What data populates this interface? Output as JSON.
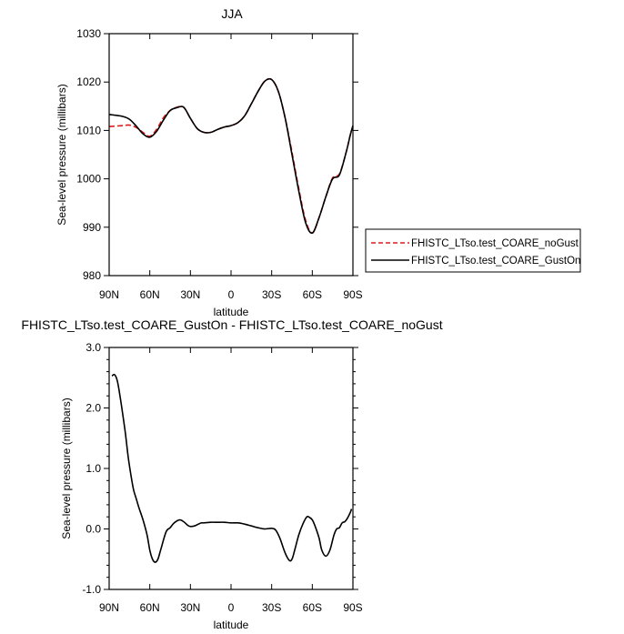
{
  "chart_data": [
    {
      "type": "line",
      "title": "JJA",
      "xlabel": "latitude",
      "ylabel": "Sea-level pressure (millibars)",
      "x_ticks": [
        {
          "value": 90,
          "label": "90N"
        },
        {
          "value": 60,
          "label": "60N"
        },
        {
          "value": 30,
          "label": "30N"
        },
        {
          "value": 0,
          "label": "0"
        },
        {
          "value": -30,
          "label": "30S"
        },
        {
          "value": -60,
          "label": "60S"
        },
        {
          "value": -90,
          "label": "90S"
        }
      ],
      "xlim": [
        90,
        -90
      ],
      "ylim": [
        980,
        1030
      ],
      "y_ticks": [
        980,
        990,
        1000,
        1010,
        1020,
        1030
      ],
      "y_tick_labels": [
        "980",
        "990",
        "1000",
        "1010",
        "1020",
        "1030"
      ],
      "legend_position": "right",
      "series": [
        {
          "name": "FHISTC_LTso.test_COARE_noGust",
          "color": "#e31a1c",
          "dash": "dashed",
          "x": [
            90,
            80,
            75,
            70,
            65,
            60,
            55,
            50,
            45,
            40,
            35,
            30,
            25,
            20,
            15,
            10,
            5,
            0,
            -5,
            -10,
            -15,
            -20,
            -25,
            -30,
            -35,
            -40,
            -45,
            -50,
            -55,
            -60,
            -65,
            -70,
            -75,
            -80,
            -85,
            -88,
            -90
          ],
          "y": [
            1010.8,
            1011.0,
            1011.1,
            1010.6,
            1009.6,
            1008.8,
            1010.2,
            1012.6,
            1014.1,
            1014.8,
            1014.8,
            1012.5,
            1010.4,
            1009.6,
            1009.6,
            1010.2,
            1010.7,
            1011.0,
            1011.6,
            1013.0,
            1015.5,
            1018.1,
            1020.2,
            1020.5,
            1018.0,
            1012.5,
            1005.5,
            998.0,
            991.5,
            988.8,
            992.0,
            996.3,
            1000.2,
            1001.0,
            1005.5,
            1009.0,
            1010.8
          ]
        },
        {
          "name": "FHISTC_LTso.test_COARE_GustOn",
          "color": "#000000",
          "dash": "solid",
          "x": [
            90,
            80,
            75,
            70,
            65,
            60,
            55,
            50,
            45,
            40,
            35,
            30,
            25,
            20,
            15,
            10,
            5,
            0,
            -5,
            -10,
            -15,
            -20,
            -25,
            -30,
            -35,
            -40,
            -45,
            -50,
            -55,
            -60,
            -65,
            -70,
            -75,
            -80,
            -85,
            -88,
            -90
          ],
          "y": [
            1013.3,
            1012.9,
            1012.3,
            1010.9,
            1009.3,
            1008.6,
            1009.8,
            1012.1,
            1014.1,
            1014.7,
            1014.8,
            1012.5,
            1010.4,
            1009.6,
            1009.6,
            1010.2,
            1010.7,
            1011.0,
            1011.6,
            1013.0,
            1015.5,
            1018.1,
            1020.2,
            1020.5,
            1018.0,
            1012.5,
            1005.0,
            997.5,
            991.0,
            988.8,
            992.0,
            996.3,
            1000.0,
            1000.8,
            1005.5,
            1009.0,
            1011.0
          ]
        }
      ]
    },
    {
      "type": "line",
      "title": "FHISTC_LTso.test_COARE_GustOn - FHISTC_LTso.test_COARE_noGust",
      "xlabel": "latitude",
      "ylabel": "Sea-level pressure (millibars)",
      "x_ticks": [
        {
          "value": 90,
          "label": "90N"
        },
        {
          "value": 60,
          "label": "60N"
        },
        {
          "value": 30,
          "label": "30N"
        },
        {
          "value": 0,
          "label": "0"
        },
        {
          "value": -30,
          "label": "30S"
        },
        {
          "value": -60,
          "label": "60S"
        },
        {
          "value": -90,
          "label": "90S"
        }
      ],
      "xlim": [
        90,
        -90
      ],
      "ylim": [
        -1.0,
        3.0
      ],
      "y_ticks": [
        -1.0,
        0.0,
        1.0,
        2.0,
        3.0
      ],
      "y_tick_labels": [
        "-1.0",
        "0.0",
        "1.0",
        "2.0",
        "3.0"
      ],
      "series": [
        {
          "color": "#000000",
          "dash": "solid",
          "x": [
            88,
            86,
            84,
            82,
            80,
            78,
            76,
            74,
            72,
            70,
            68,
            65,
            62,
            60,
            58,
            56,
            54,
            52,
            48,
            45,
            42,
            38,
            35,
            32,
            30,
            27,
            25,
            22,
            20,
            15,
            10,
            5,
            0,
            -5,
            -10,
            -15,
            -20,
            -25,
            -30,
            -33,
            -36,
            -40,
            -43,
            -45,
            -47,
            -50,
            -53,
            -56,
            -58,
            -60,
            -62,
            -65,
            -67,
            -70,
            -73,
            -76,
            -78,
            -80,
            -82,
            -84,
            -86,
            -88,
            -89
          ],
          "y": [
            2.53,
            2.55,
            2.45,
            2.2,
            1.9,
            1.58,
            1.2,
            0.9,
            0.65,
            0.5,
            0.35,
            0.15,
            -0.1,
            -0.35,
            -0.5,
            -0.55,
            -0.5,
            -0.35,
            -0.05,
            0.02,
            0.1,
            0.15,
            0.12,
            0.06,
            0.04,
            0.05,
            0.07,
            0.1,
            0.1,
            0.11,
            0.11,
            0.11,
            0.1,
            0.1,
            0.08,
            0.05,
            0.02,
            0.0,
            0.01,
            -0.02,
            -0.15,
            -0.4,
            -0.52,
            -0.5,
            -0.35,
            -0.1,
            0.08,
            0.2,
            0.19,
            0.15,
            0.05,
            -0.15,
            -0.35,
            -0.45,
            -0.35,
            -0.1,
            0.0,
            0.02,
            0.1,
            0.12,
            0.18,
            0.27,
            0.33
          ]
        }
      ]
    }
  ]
}
